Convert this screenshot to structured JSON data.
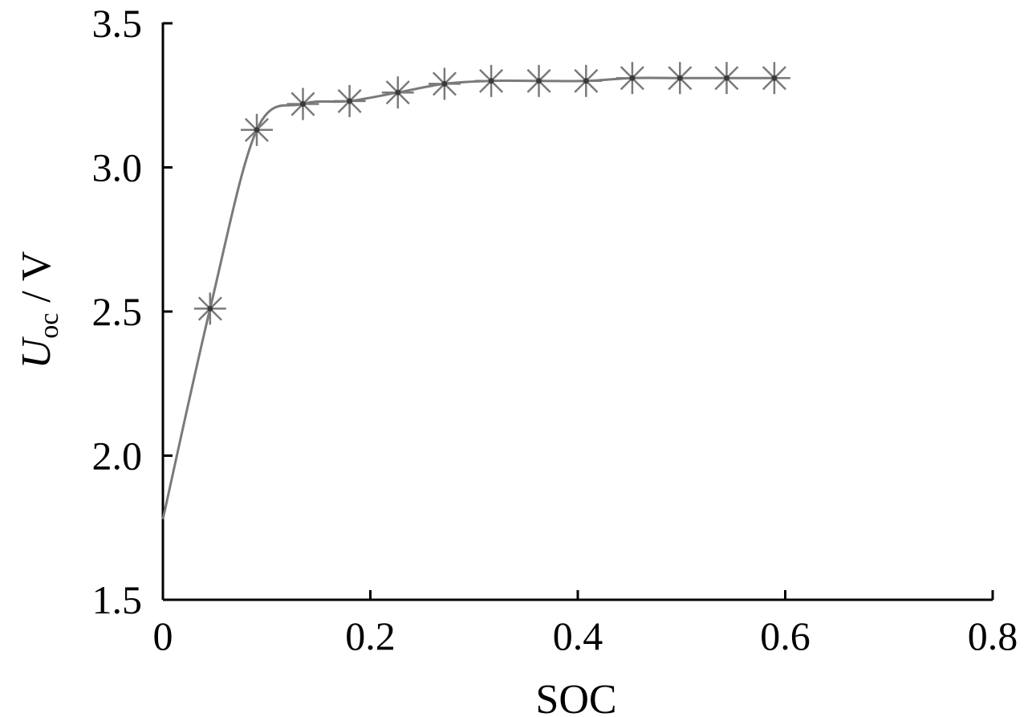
{
  "chart_data": {
    "type": "line",
    "title": "",
    "xlabel": "SOC",
    "ylabel": {
      "main": "U",
      "subscript": "oc",
      "unit_sep": " / ",
      "unit": "V"
    },
    "xlim": [
      0,
      0.8
    ],
    "ylim": [
      1.5,
      3.5
    ],
    "xticks": [
      0,
      0.2,
      0.4,
      0.6,
      0.8
    ],
    "xtick_labels": [
      "0",
      "0.2",
      "0.4",
      "0.6",
      "0.8"
    ],
    "yticks": [
      1.5,
      2.0,
      2.5,
      3.0,
      3.5
    ],
    "ytick_labels": [
      "1.5",
      "2.0",
      "2.5",
      "3.0",
      "3.5"
    ],
    "grid": false,
    "legend": "none",
    "series": [
      {
        "marker": "asterisk",
        "color": "#7a7a7a",
        "x": [
          0,
          0.0455,
          0.0905,
          0.135,
          0.18,
          0.2265,
          0.2715,
          0.3165,
          0.3625,
          0.408,
          0.4525,
          0.4985,
          0.5435,
          0.5895
        ],
        "y": [
          1.78,
          2.51,
          3.13,
          3.22,
          3.23,
          3.26,
          3.29,
          3.3,
          3.3,
          3.3,
          3.31,
          3.31,
          3.31,
          3.31
        ],
        "markers_from_index": 1
      }
    ],
    "axis_color": "#000000"
  }
}
